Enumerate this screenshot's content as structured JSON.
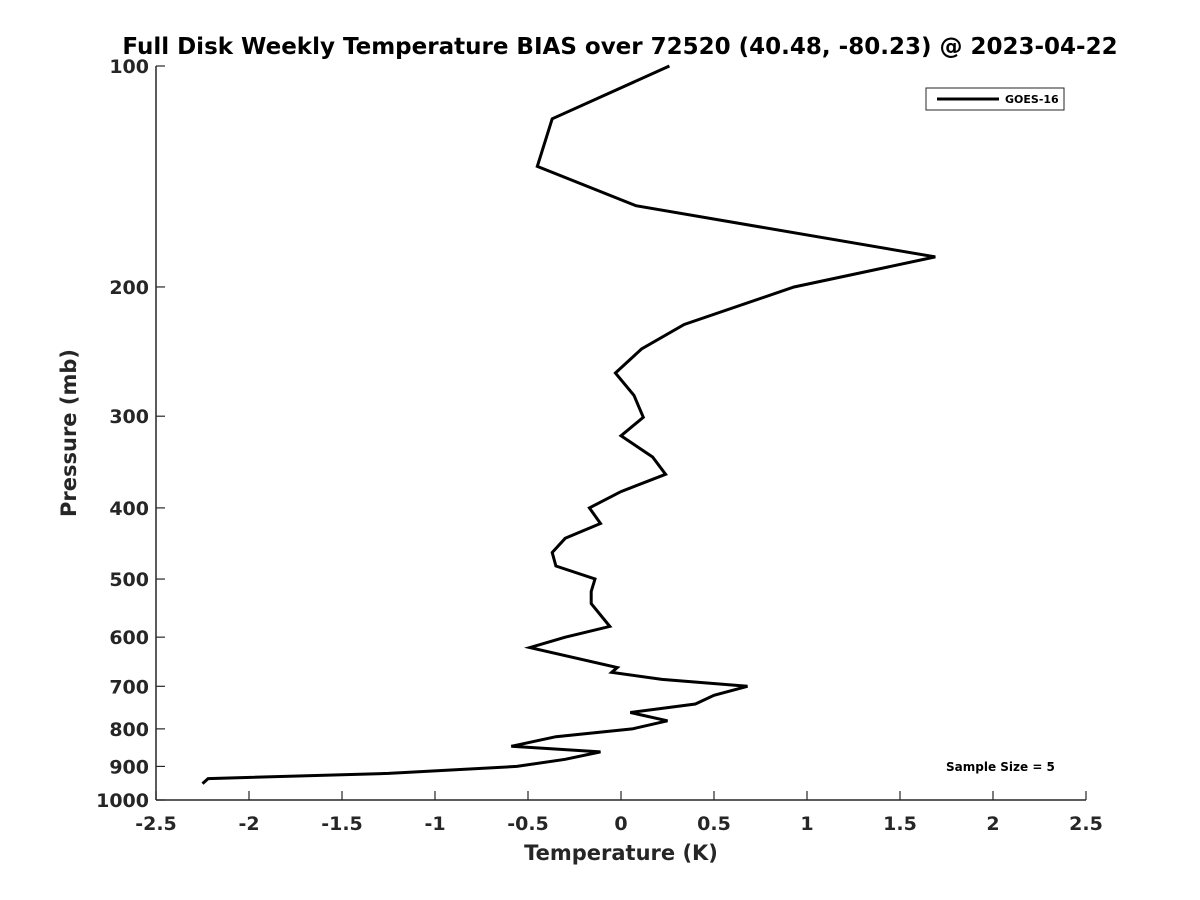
{
  "chart_data": {
    "type": "line",
    "title": "Full Disk Weekly Temperature BIAS over 72520 (40.48, -80.23) @ 2023-04-22",
    "xlabel": "Temperature (K)",
    "ylabel": "Pressure (mb)",
    "xlim": [
      -2.5,
      2.5
    ],
    "ylim": [
      100,
      1000
    ],
    "y_scale": "log",
    "y_reversed": true,
    "x_ticks": [
      -2.5,
      -2,
      -1.5,
      -1,
      -0.5,
      0,
      0.5,
      1,
      1.5,
      2,
      2.5
    ],
    "x_tick_labels": [
      "-2.5",
      "-2",
      "-1.5",
      "-1",
      "-0.5",
      "0",
      "0.5",
      "1",
      "1.5",
      "2",
      "2.5"
    ],
    "y_ticks": [
      100,
      200,
      300,
      400,
      500,
      600,
      700,
      800,
      900,
      1000
    ],
    "y_tick_labels": [
      "100",
      "200",
      "300",
      "400",
      "500",
      "600",
      "700",
      "800",
      "900",
      "1000"
    ],
    "grid": false,
    "legend_position": "top-right",
    "color": "#000000",
    "series": [
      {
        "name": "GOES-16",
        "points": [
          {
            "x": 0.26,
            "y": 100
          },
          {
            "x": -0.37,
            "y": 118
          },
          {
            "x": -0.45,
            "y": 137
          },
          {
            "x": 0.08,
            "y": 155
          },
          {
            "x": 1.69,
            "y": 182
          },
          {
            "x": 0.93,
            "y": 200
          },
          {
            "x": 0.34,
            "y": 225
          },
          {
            "x": 0.11,
            "y": 243
          },
          {
            "x": -0.03,
            "y": 262
          },
          {
            "x": 0.07,
            "y": 281
          },
          {
            "x": 0.12,
            "y": 301
          },
          {
            "x": 0.0,
            "y": 319
          },
          {
            "x": 0.17,
            "y": 341
          },
          {
            "x": 0.24,
            "y": 360
          },
          {
            "x": 0.0,
            "y": 380
          },
          {
            "x": -0.17,
            "y": 400
          },
          {
            "x": -0.11,
            "y": 420
          },
          {
            "x": -0.3,
            "y": 440
          },
          {
            "x": -0.37,
            "y": 460
          },
          {
            "x": -0.35,
            "y": 480
          },
          {
            "x": -0.14,
            "y": 500
          },
          {
            "x": -0.16,
            "y": 520
          },
          {
            "x": -0.16,
            "y": 540
          },
          {
            "x": -0.06,
            "y": 580
          },
          {
            "x": -0.3,
            "y": 600
          },
          {
            "x": -0.49,
            "y": 620
          },
          {
            "x": -0.02,
            "y": 660
          },
          {
            "x": -0.05,
            "y": 670
          },
          {
            "x": 0.22,
            "y": 685
          },
          {
            "x": 0.68,
            "y": 700
          },
          {
            "x": 0.5,
            "y": 720
          },
          {
            "x": 0.4,
            "y": 740
          },
          {
            "x": 0.05,
            "y": 760
          },
          {
            "x": 0.25,
            "y": 780
          },
          {
            "x": 0.06,
            "y": 800
          },
          {
            "x": -0.35,
            "y": 820
          },
          {
            "x": -0.59,
            "y": 845
          },
          {
            "x": -0.11,
            "y": 860
          },
          {
            "x": -0.3,
            "y": 880
          },
          {
            "x": -0.56,
            "y": 900
          },
          {
            "x": -1.25,
            "y": 920
          },
          {
            "x": -2.22,
            "y": 935
          },
          {
            "x": -2.25,
            "y": 950
          }
        ]
      }
    ],
    "annotations": [
      {
        "text": "Sample Size = 5",
        "position": "bottom-right"
      }
    ]
  }
}
